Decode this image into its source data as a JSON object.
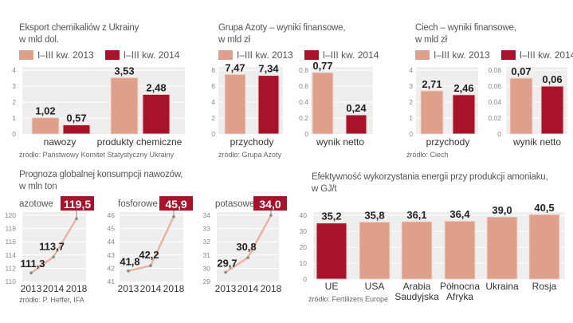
{
  "colors": {
    "c2013": "#dea08a",
    "c2014": "#a8122a",
    "plot_bg": "#eeeeee",
    "grid": "#ffffff",
    "line": "#e8b4a2"
  },
  "legend": {
    "a": "I–III kw. 2013",
    "b": "I–III kw. 2014"
  },
  "chart_data": [
    {
      "id": "export",
      "type": "bar",
      "title": "Eksport chemikaliów z Ukrainy",
      "subtitle": "w mld dol.",
      "categories": [
        "nawozy",
        "produkty chemiczne"
      ],
      "series": [
        {
          "name": "I–III kw. 2013",
          "values": [
            1.02,
            3.53
          ],
          "labels": [
            "1,02",
            "3,53"
          ]
        },
        {
          "name": "I–III kw. 2014",
          "values": [
            0.57,
            2.48
          ],
          "labels": [
            "0,57",
            "2,48"
          ]
        }
      ],
      "ylim": [
        0,
        4
      ],
      "yticks": [
        "0",
        "1",
        "2",
        "3",
        "4"
      ],
      "source": "źródło: Państwowy Komitet Statystyczny Ukrainy"
    },
    {
      "id": "azoty",
      "type": "bar",
      "title": "Grupa Azoty – wyniki finansowe,",
      "subtitle": "w mld zł",
      "panels": [
        {
          "category": "przychody",
          "ylim": [
            0,
            8
          ],
          "yticks": [
            "0",
            "2",
            "4",
            "6",
            "8"
          ],
          "values": [
            7.47,
            7.34
          ],
          "labels": [
            "7,47",
            "7,34"
          ]
        },
        {
          "category": "wynik netto",
          "ylim": [
            0,
            0.8
          ],
          "yticks": [
            "0",
            "0.2",
            "0.4",
            "0.6",
            "0.8"
          ],
          "values": [
            0.77,
            0.24
          ],
          "labels": [
            "0,77",
            "0,24"
          ]
        }
      ],
      "source": "źródło: Grupa Azoty"
    },
    {
      "id": "ciech",
      "type": "bar",
      "title": "Ciech – wyniki finansowe,",
      "subtitle": "w mld zł",
      "panels": [
        {
          "category": "przychody",
          "ylim": [
            0,
            4
          ],
          "yticks": [
            "0",
            "1",
            "2",
            "3",
            "4"
          ],
          "values": [
            2.71,
            2.46
          ],
          "labels": [
            "2,71",
            "2,46"
          ]
        },
        {
          "category": "wynik netto",
          "ylim": [
            0,
            0.08
          ],
          "yticks": [
            "0",
            "0,02",
            "0,04",
            "0,06",
            "0,08"
          ],
          "values": [
            0.07,
            0.06
          ],
          "labels": [
            "0,07",
            "0,06"
          ]
        }
      ],
      "source": "źródło: Ciech"
    },
    {
      "id": "prognoza",
      "type": "line",
      "title": "Prognoza globalnej konsumpcji nawozów,",
      "subtitle": "w mln ton",
      "x": [
        "2013",
        "2014",
        "2018"
      ],
      "series": [
        {
          "name": "azotowe",
          "values": [
            111.3,
            113.7,
            119.5
          ],
          "labels": [
            "111,3",
            "113,7",
            "119,5"
          ],
          "ylim": [
            110,
            120
          ],
          "yticks": [
            "110",
            "112",
            "114",
            "116",
            "118",
            "120"
          ],
          "ytick_values": [
            110,
            112,
            114,
            116,
            118,
            120
          ]
        },
        {
          "name": "fosforowe",
          "values": [
            41.8,
            42.2,
            45.9
          ],
          "labels": [
            "41,8",
            "42,2",
            "45,9"
          ],
          "ylim": [
            41,
            46
          ],
          "yticks": [
            "41",
            "42",
            "43",
            "44",
            "45",
            "46"
          ],
          "ytick_values": [
            41,
            42,
            43,
            44,
            45,
            46
          ]
        },
        {
          "name": "potasowe",
          "values": [
            29.7,
            30.8,
            34.0
          ],
          "labels": [
            "29,7",
            "30,8",
            "34,0"
          ],
          "ylim": [
            29,
            34
          ],
          "yticks": [
            "29",
            "30",
            "31",
            "32",
            "33",
            "34"
          ],
          "ytick_values": [
            29,
            30,
            31,
            32,
            33,
            34
          ]
        }
      ],
      "source": "źródło: P. Heffer, IFA"
    },
    {
      "id": "energia",
      "type": "bar",
      "title": "Efektywność wykorzystania energii przy produkcji amoniaku,",
      "subtitle": "w GJ/t",
      "categories": [
        "UE",
        "USA",
        "Arabia Saudyjska",
        "Północna Afryka",
        "Ukraina",
        "Rosja"
      ],
      "category_lines": [
        [
          "UE"
        ],
        [
          "USA"
        ],
        [
          "Arabia",
          "Saudyjska"
        ],
        [
          "Północna",
          "Afryka"
        ],
        [
          "Ukraina"
        ],
        [
          "Rosja"
        ]
      ],
      "values": [
        35.2,
        35.8,
        36.1,
        36.4,
        39.0,
        40.5
      ],
      "labels": [
        "35,2",
        "35,8",
        "36,1",
        "36,4",
        "39,0",
        "40,5"
      ],
      "highlight": [
        true,
        false,
        false,
        false,
        false,
        false
      ],
      "ylim": [
        0,
        40
      ],
      "yticks": [
        "0",
        "10",
        "20",
        "30",
        "40"
      ],
      "source": "źródło: Fertilizers Europe"
    }
  ]
}
